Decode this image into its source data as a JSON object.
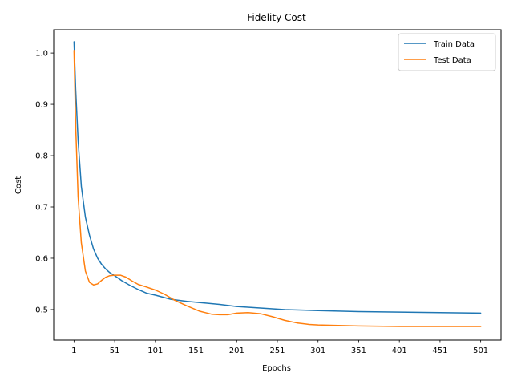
{
  "chart_data": {
    "type": "line",
    "title": "Fidelity Cost",
    "xlabel": "Epochs",
    "ylabel": "Cost",
    "xlim": [
      -24,
      526
    ],
    "ylim": [
      0.4405,
      1.0455
    ],
    "xticks": [
      1,
      51,
      101,
      151,
      201,
      251,
      301,
      351,
      401,
      451,
      501
    ],
    "yticks": [
      0.5,
      0.6,
      0.7,
      0.8,
      0.9,
      1.0
    ],
    "ytick_labels": [
      "0.5",
      "0.6",
      "0.7",
      "0.8",
      "0.9",
      "1.0"
    ],
    "grid": false,
    "legend_position": "top-right",
    "series": [
      {
        "name": "Train Data",
        "color": "#1f77b4",
        "x": [
          1,
          3,
          6,
          10,
          15,
          20,
          25,
          30,
          35,
          40,
          45,
          51,
          60,
          70,
          80,
          90,
          101,
          120,
          140,
          160,
          180,
          201,
          230,
          260,
          301,
          351,
          401,
          451,
          501
        ],
        "y": [
          1.022,
          0.93,
          0.83,
          0.74,
          0.68,
          0.645,
          0.618,
          0.6,
          0.588,
          0.579,
          0.572,
          0.566,
          0.556,
          0.547,
          0.539,
          0.532,
          0.528,
          0.52,
          0.516,
          0.513,
          0.51,
          0.506,
          0.503,
          0.5,
          0.498,
          0.496,
          0.495,
          0.494,
          0.493
        ]
      },
      {
        "name": "Test Data",
        "color": "#ff7f0e",
        "x": [
          1,
          3,
          6,
          10,
          15,
          20,
          25,
          30,
          35,
          40,
          45,
          51,
          58,
          65,
          72,
          80,
          90,
          101,
          112,
          125,
          140,
          155,
          170,
          180,
          190,
          201,
          215,
          230,
          245,
          260,
          275,
          290,
          301,
          351,
          401,
          451,
          501
        ],
        "y": [
          1.005,
          0.86,
          0.72,
          0.63,
          0.575,
          0.553,
          0.548,
          0.55,
          0.557,
          0.563,
          0.566,
          0.567,
          0.567,
          0.563,
          0.556,
          0.549,
          0.544,
          0.538,
          0.53,
          0.518,
          0.507,
          0.497,
          0.491,
          0.49,
          0.49,
          0.493,
          0.494,
          0.492,
          0.486,
          0.479,
          0.474,
          0.471,
          0.47,
          0.468,
          0.467,
          0.467,
          0.467
        ]
      }
    ]
  }
}
